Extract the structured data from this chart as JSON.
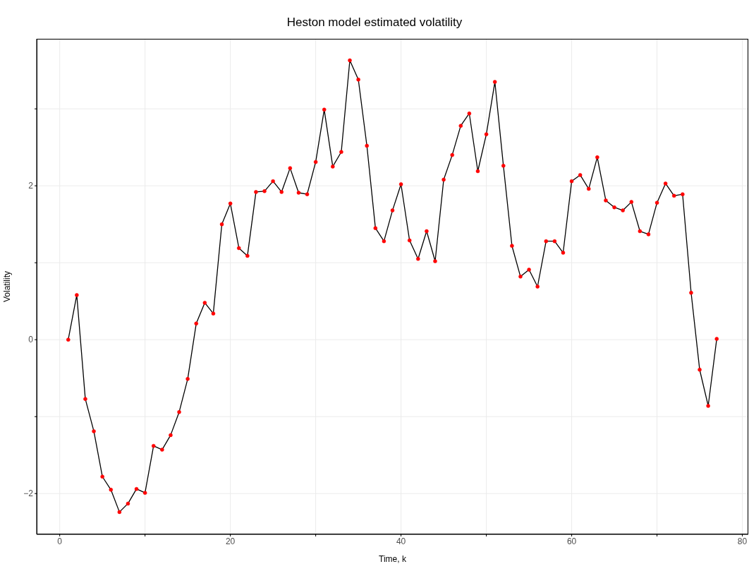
{
  "chart_data": {
    "type": "line",
    "title": "Heston model estimated volatility",
    "xlabel": "Time, k",
    "ylabel": "Volatility",
    "x": [
      1,
      2,
      3,
      4,
      5,
      6,
      7,
      8,
      9,
      10,
      11,
      12,
      13,
      14,
      15,
      16,
      17,
      18,
      19,
      20,
      21,
      22,
      23,
      24,
      25,
      26,
      27,
      28,
      29,
      30,
      31,
      32,
      33,
      34,
      35,
      36,
      37,
      38,
      39,
      40,
      41,
      42,
      43,
      44,
      45,
      46,
      47,
      48,
      49,
      50,
      51,
      52,
      53,
      54,
      55,
      56,
      57,
      58,
      59,
      60,
      61,
      62,
      63,
      64,
      65,
      66,
      67,
      68,
      69,
      70,
      71,
      72,
      73,
      74,
      75,
      76,
      77
    ],
    "series": [
      {
        "color": "#000000",
        "marker": "none",
        "values": [
          0,
          0.58,
          -0.77,
          -1.19,
          -1.78,
          -1.95,
          -2.24,
          -2.13,
          -1.94,
          -1.99,
          -1.38,
          -1.43,
          -1.24,
          -0.94,
          -0.51,
          0.21,
          0.48,
          0.34,
          1.5,
          1.77,
          1.19,
          1.09,
          1.92,
          1.93,
          2.06,
          1.92,
          2.23,
          1.91,
          1.89,
          2.31,
          2.99,
          2.25,
          2.44,
          3.63,
          3.38,
          2.52,
          1.45,
          1.28,
          1.68,
          2.02,
          1.29,
          1.05,
          1.41,
          1.02,
          2.08,
          2.4,
          2.78,
          2.94,
          2.19,
          2.67,
          3.35,
          2.26,
          1.22,
          0.82,
          0.91,
          0.69,
          1.28,
          1.28,
          1.13,
          2.06,
          2.14,
          1.96,
          2.37,
          1.81,
          1.72,
          1.68,
          1.79,
          1.41,
          1.37,
          1.78,
          2.03,
          1.87,
          1.89,
          0.61,
          -0.39,
          -0.86,
          0.01
        ]
      },
      {
        "type": "scatter",
        "color": "#ff0000",
        "marker": "circle",
        "values": [
          0,
          0.58,
          -0.77,
          -1.19,
          -1.78,
          -1.95,
          -2.24,
          -2.13,
          -1.94,
          -1.99,
          -1.38,
          -1.43,
          -1.24,
          -0.94,
          -0.51,
          0.21,
          0.48,
          0.34,
          1.5,
          1.77,
          1.19,
          1.09,
          1.92,
          1.93,
          2.06,
          1.92,
          2.23,
          1.91,
          1.89,
          2.31,
          2.99,
          2.25,
          2.44,
          3.63,
          3.38,
          2.52,
          1.45,
          1.28,
          1.68,
          2.02,
          1.29,
          1.05,
          1.41,
          1.02,
          2.08,
          2.4,
          2.78,
          2.94,
          2.19,
          2.67,
          3.35,
          2.26,
          1.22,
          0.82,
          0.91,
          0.69,
          1.28,
          1.28,
          1.13,
          2.06,
          2.14,
          1.96,
          2.37,
          1.81,
          1.72,
          1.68,
          1.79,
          1.41,
          1.37,
          1.78,
          2.03,
          1.87,
          1.89,
          0.61,
          -0.39,
          -0.86,
          0.01
        ]
      }
    ],
    "xlim": [
      -2.7,
      80.7
    ],
    "ylim": [
      -2.53,
      3.91
    ],
    "xticks": [
      0,
      {
        "value": 10,
        "label": null
      },
      20,
      {
        "value": 30,
        "label": null
      },
      40,
      {
        "value": 50,
        "label": null
      },
      60,
      {
        "value": 70,
        "label": null
      },
      80
    ],
    "yticks": [
      -2,
      {
        "value": -1,
        "label": null
      },
      0,
      {
        "value": 1,
        "label": null
      },
      2,
      {
        "value": 3,
        "label": null
      }
    ],
    "grid": true,
    "line_style": "solid",
    "legend": false
  }
}
